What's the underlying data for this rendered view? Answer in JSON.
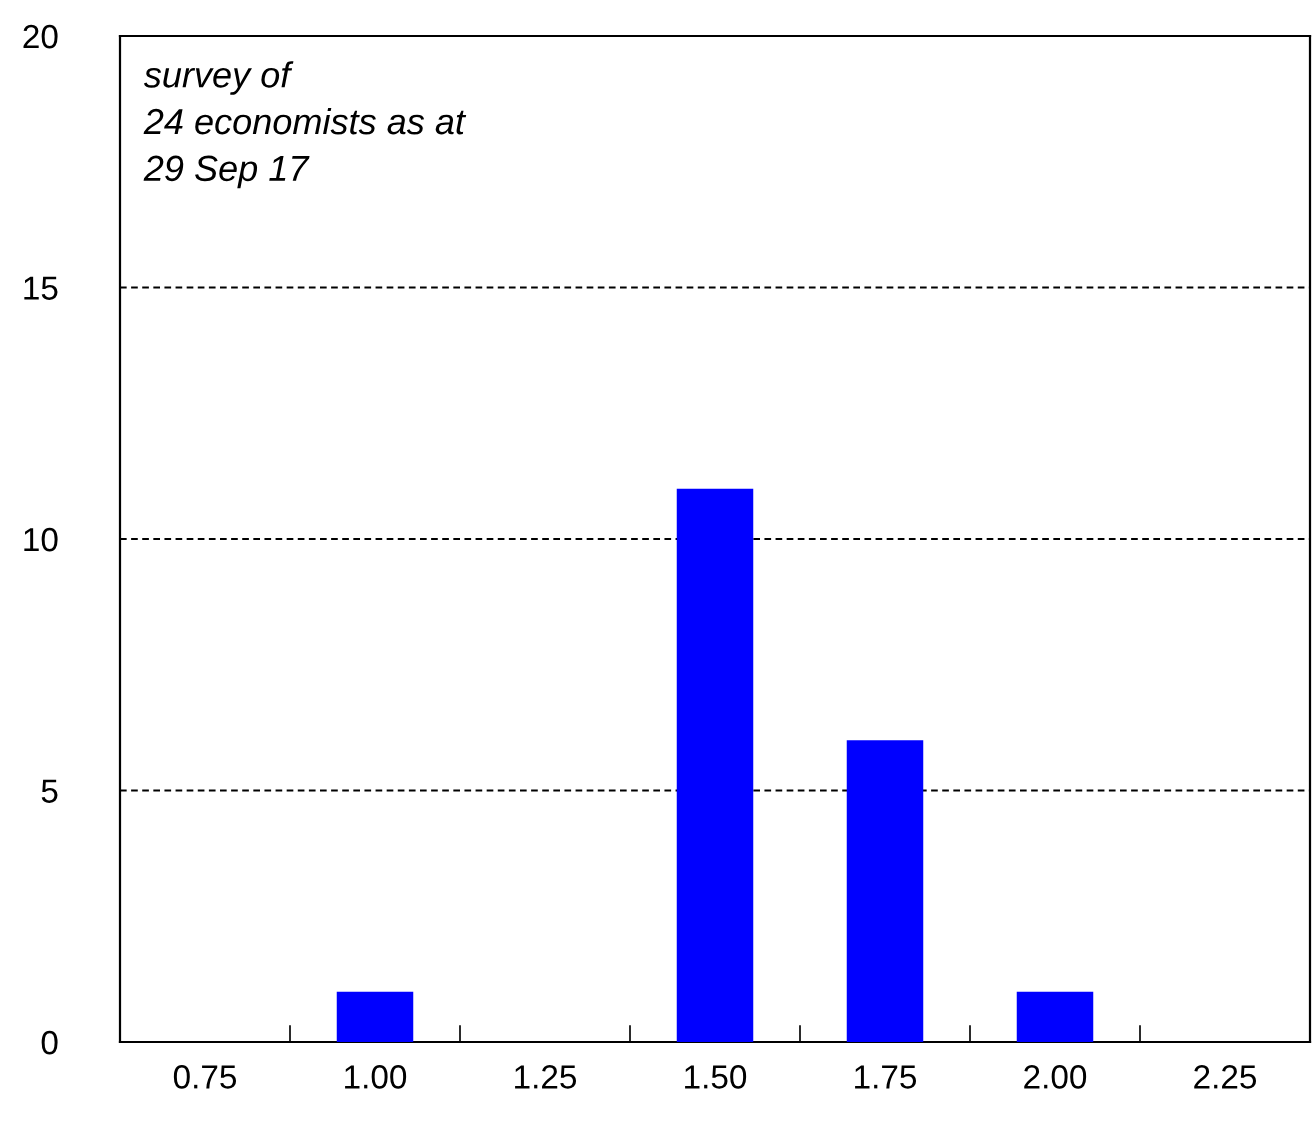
{
  "chart_data": {
    "type": "bar",
    "categories": [
      "0.75",
      "1.00",
      "1.25",
      "1.50",
      "1.75",
      "2.00",
      "2.25"
    ],
    "values": [
      0,
      1,
      0,
      11,
      6,
      1,
      0
    ],
    "color": "#0000ff",
    "ylim": [
      0,
      20
    ],
    "yticks": [
      0,
      5,
      10,
      15,
      20
    ],
    "grid": "y",
    "annotations": [
      "survey of\n24 economists as at\n29 Sep 17"
    ]
  }
}
